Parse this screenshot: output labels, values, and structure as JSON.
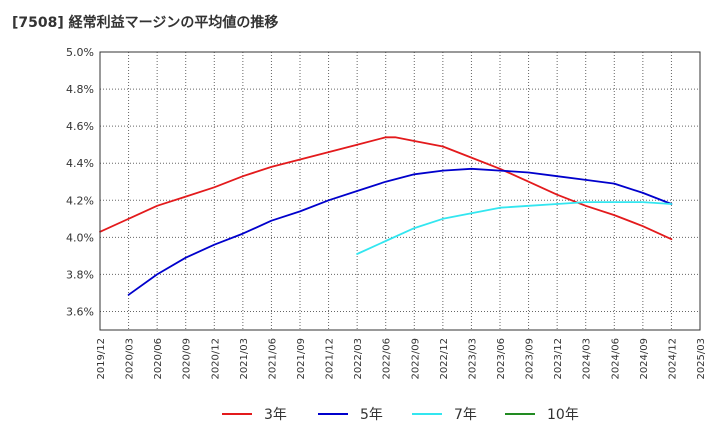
{
  "chart_data": {
    "type": "line",
    "title": "[7508]  経常利益マージンの平均値の推移",
    "xlabel": "",
    "ylabel": "",
    "ylim": [
      3.5,
      5.0
    ],
    "y_ticks": [
      "3.6%",
      "3.8%",
      "4.0%",
      "4.2%",
      "4.4%",
      "4.6%",
      "4.8%",
      "5.0%"
    ],
    "y_tick_values": [
      3.6,
      3.8,
      4.0,
      4.2,
      4.4,
      4.6,
      4.8,
      5.0
    ],
    "x_ticks": [
      "2019/12",
      "2020/03",
      "2020/06",
      "2020/09",
      "2020/12",
      "2021/03",
      "2021/06",
      "2021/09",
      "2021/12",
      "2022/03",
      "2022/06",
      "2022/09",
      "2022/12",
      "2023/03",
      "2023/06",
      "2023/09",
      "2023/12",
      "2024/03",
      "2024/06",
      "2024/09",
      "2024/12",
      "2025/03"
    ],
    "grid": true,
    "legend_position": "bottom",
    "series": [
      {
        "name": "3年",
        "color": "#e31a1c",
        "x": [
          "2019/12",
          "2020/03",
          "2020/06",
          "2020/09",
          "2020/12",
          "2021/03",
          "2021/06",
          "2021/09",
          "2021/12",
          "2022/03",
          "2022/06",
          "2022/07",
          "2022/09",
          "2022/12",
          "2023/03",
          "2023/06",
          "2023/09",
          "2023/12",
          "2024/03",
          "2024/06",
          "2024/09",
          "2024/12"
        ],
        "values": [
          4.03,
          4.1,
          4.17,
          4.22,
          4.27,
          4.33,
          4.38,
          4.42,
          4.46,
          4.5,
          4.54,
          4.54,
          4.52,
          4.49,
          4.43,
          4.37,
          4.3,
          4.23,
          4.17,
          4.12,
          4.06,
          3.99
        ]
      },
      {
        "name": "5年",
        "color": "#0000cc",
        "x": [
          "2020/03",
          "2020/06",
          "2020/09",
          "2020/12",
          "2021/03",
          "2021/06",
          "2021/09",
          "2021/12",
          "2022/03",
          "2022/06",
          "2022/09",
          "2022/12",
          "2023/03",
          "2023/06",
          "2023/09",
          "2023/12",
          "2024/03",
          "2024/06",
          "2024/09",
          "2024/12"
        ],
        "values": [
          3.69,
          3.8,
          3.89,
          3.96,
          4.02,
          4.09,
          4.14,
          4.2,
          4.25,
          4.3,
          4.34,
          4.36,
          4.37,
          4.36,
          4.35,
          4.33,
          4.31,
          4.29,
          4.24,
          4.18
        ]
      },
      {
        "name": "7年",
        "color": "#33e6f0",
        "x": [
          "2022/03",
          "2022/06",
          "2022/09",
          "2022/12",
          "2023/03",
          "2023/06",
          "2023/09",
          "2023/12",
          "2024/03",
          "2024/06",
          "2024/09",
          "2024/12"
        ],
        "values": [
          3.91,
          3.98,
          4.05,
          4.1,
          4.13,
          4.16,
          4.17,
          4.18,
          4.19,
          4.19,
          4.19,
          4.18
        ]
      },
      {
        "name": "10年",
        "color": "#228b22",
        "x": [],
        "values": []
      }
    ]
  }
}
